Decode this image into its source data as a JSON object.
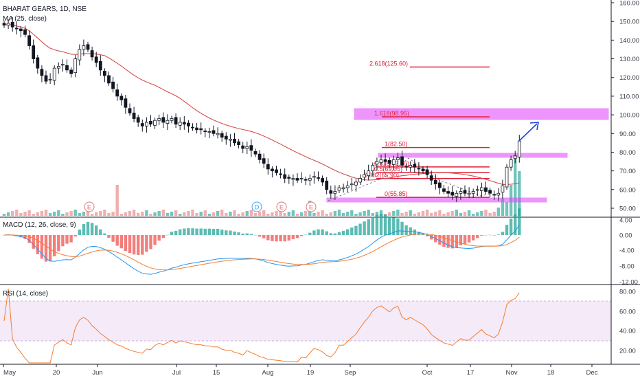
{
  "chart_data": {
    "type": "candlestick",
    "title": "BHARAT GEARS, 1D, NSE",
    "overlay_label": "MA (25, close)",
    "macd_label": "MACD (12, 26, close, 9)",
    "rsi_label": "RSI (14, close)",
    "price_ticks": [
      "160.00",
      "150.00",
      "140.00",
      "130.00",
      "120.00",
      "110.00",
      "100.00",
      "90.00",
      "80.00",
      "70.00",
      "60.00",
      "50.00"
    ],
    "macd_ticks": [
      "4.00",
      "0.00",
      "-4.00",
      "-8.00",
      "-12.00"
    ],
    "rsi_ticks": [
      "80.00",
      "60.00",
      "40.00",
      "20.00"
    ],
    "x_labels": [
      "May",
      "20",
      "Jun",
      "Jul",
      "15",
      "Aug",
      "19",
      "Sep",
      "Oct",
      "17",
      "Nov",
      "18",
      "Dec"
    ],
    "event_markers": [
      "E",
      "D",
      "E",
      "E"
    ],
    "fib_levels": [
      {
        "label": "2.618(125.60)",
        "value": 125.6
      },
      {
        "label": "1.618(98.95)",
        "value": 98.95
      },
      {
        "label": "1(82.50)",
        "value": 82.5
      },
      {
        "label": "0.618(72.10)",
        "value": 72.1
      },
      {
        "label": "0.5(69.05)",
        "value": 69.05
      },
      {
        "label": "0.382(65.90)",
        "value": 65.9
      },
      {
        "label": "0(55.85)",
        "value": 55.85
      }
    ],
    "close_series": [
      148,
      149,
      147,
      146,
      145,
      143,
      137,
      130,
      125,
      121,
      118,
      119,
      125,
      126,
      127,
      124,
      122,
      130,
      135,
      137,
      135,
      131,
      128,
      124,
      121,
      117,
      114,
      110,
      108,
      104,
      101,
      98,
      96,
      94,
      96,
      95,
      97,
      98,
      96,
      97,
      98,
      95,
      96,
      95,
      94,
      93,
      92,
      92,
      91,
      91,
      90,
      90,
      88,
      87,
      87,
      85,
      84,
      82,
      83,
      81,
      79,
      76,
      74,
      71,
      70,
      69,
      68,
      66,
      66,
      66,
      65,
      66,
      65,
      66,
      67,
      66,
      64,
      60,
      58,
      59,
      61,
      61,
      62,
      63,
      64,
      66,
      68,
      70,
      73,
      75,
      76,
      75,
      74,
      76,
      77,
      73,
      72,
      73,
      72,
      71,
      70,
      68,
      65,
      63,
      61,
      59,
      58,
      57,
      58,
      59,
      58,
      58,
      59,
      60,
      61,
      59,
      58,
      57,
      58,
      62,
      72,
      76,
      78,
      86
    ],
    "colors": {
      "up": "#131722",
      "down": "#131722",
      "ma": "#d84b4b",
      "macd": "#2196f3",
      "signal": "#f57c2e",
      "rsi": "#f57c2e",
      "fib": "#e0203a",
      "zone": "#e040fb",
      "arrow": "#1e40d9",
      "vol_up": "#4db6ac",
      "vol_down": "#ef9a9a"
    }
  }
}
